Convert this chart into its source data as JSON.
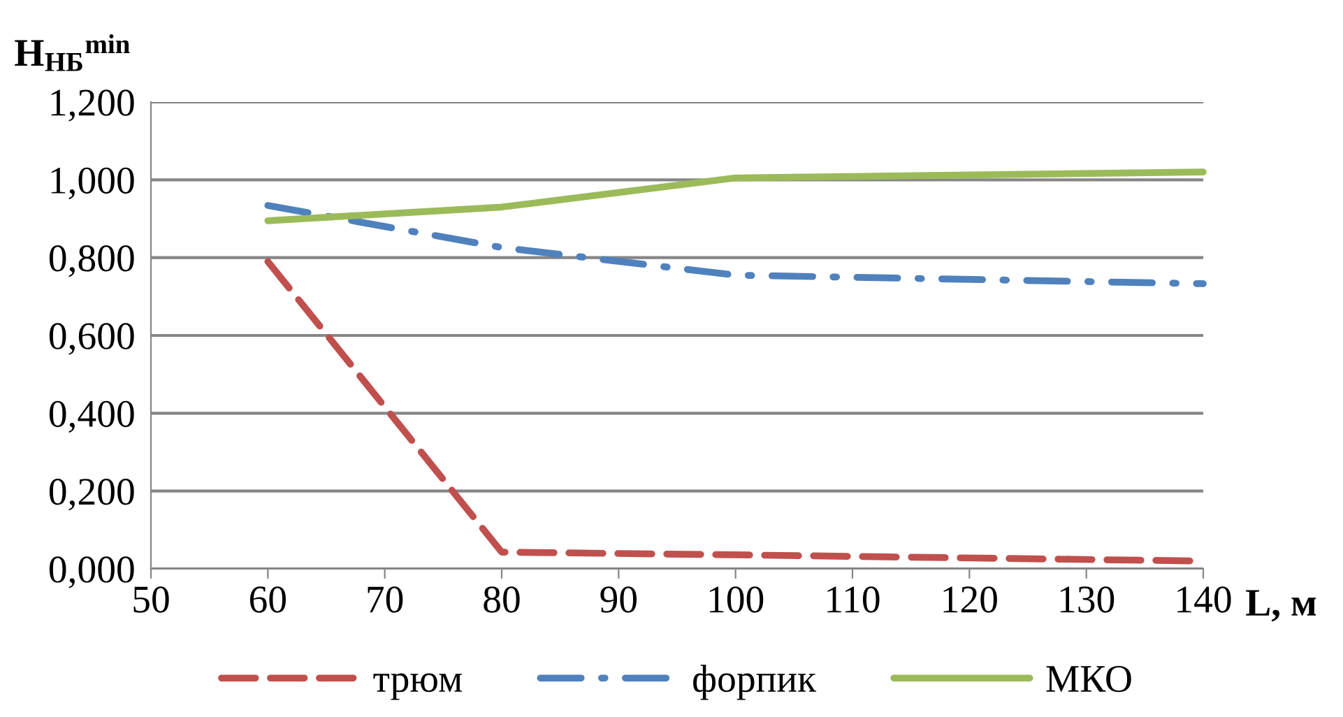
{
  "chart_data": {
    "type": "line",
    "ylabel": "H$_{НБ}$$^{min}$",
    "xlabel": "L, м",
    "x": [
      60,
      80,
      100,
      140
    ],
    "series": [
      {
        "name": "трюм",
        "color": "#c0504d",
        "values": [
          0.79,
          0.043,
          0.036,
          0.02
        ],
        "line_style": "dashed"
      },
      {
        "name": "форпик",
        "color": "#4f81bd",
        "values": [
          0.934,
          0.826,
          0.755,
          0.733
        ],
        "line_style": "dashdot"
      },
      {
        "name": "МКО",
        "color": "#9bbb59",
        "values": [
          0.895,
          0.93,
          1.005,
          1.02
        ],
        "line_style": "solid"
      }
    ],
    "xlim": [
      50,
      140
    ],
    "xticks": [
      50,
      60,
      70,
      80,
      90,
      100,
      110,
      120,
      130,
      140
    ],
    "ylim": [
      0,
      1.2
    ],
    "yticks": [
      {
        "value": 0,
        "label": "0,000"
      },
      {
        "value": 0.2,
        "label": "0,200"
      },
      {
        "value": 0.4,
        "label": "0,400"
      },
      {
        "value": 0.6,
        "label": "0,600"
      },
      {
        "value": 0.8,
        "label": "0,800"
      },
      {
        "value": 1.0,
        "label": "1,000"
      },
      {
        "value": 1.2,
        "label": "1,200"
      }
    ],
    "grid": "y",
    "legend": "bottom",
    "marker": "none"
  }
}
